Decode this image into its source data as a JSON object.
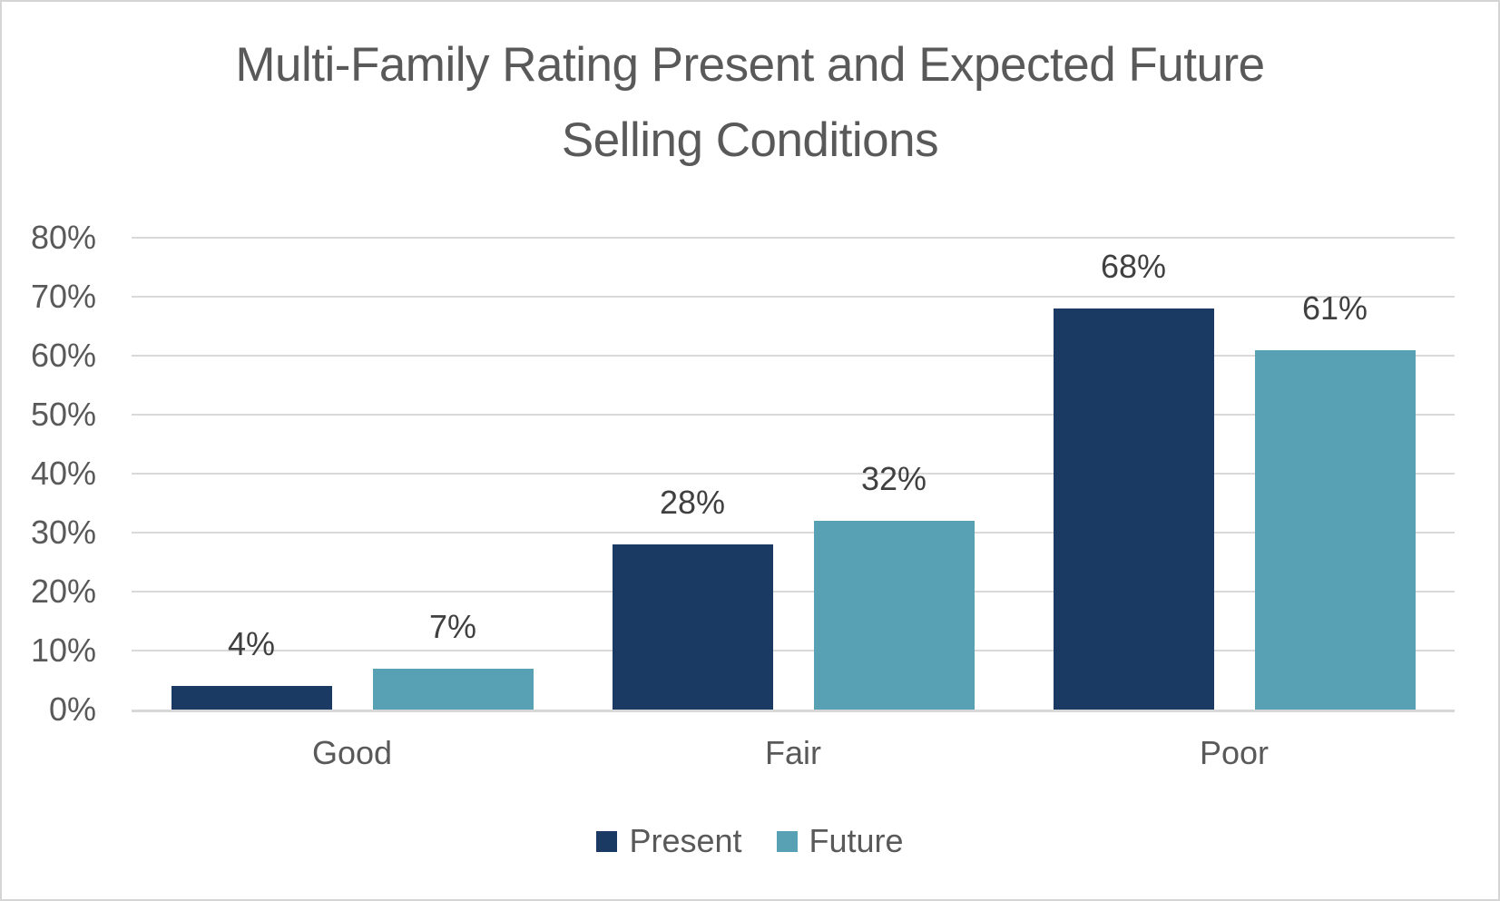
{
  "title": {
    "line1": "Multi-Family Rating Present and Expected Future",
    "line2": "Selling Conditions"
  },
  "chart_data": {
    "type": "bar",
    "title": "Multi-Family Rating Present and Expected Future Selling Conditions",
    "categories": [
      "Good",
      "Fair",
      "Poor"
    ],
    "series": [
      {
        "name": "Present",
        "color": "#1b3a63",
        "values": [
          4,
          28,
          68
        ]
      },
      {
        "name": "Future",
        "color": "#58a1b5",
        "values": [
          7,
          32,
          61
        ]
      }
    ],
    "data_label_suffix": "%",
    "data_labels": {
      "Present": [
        "4%",
        "28%",
        "68%"
      ],
      "Future": [
        "7%",
        "32%",
        "61%"
      ]
    },
    "y_axis": {
      "min": 0,
      "max": 80,
      "tick_step": 10,
      "tick_labels": [
        "0%",
        "10%",
        "20%",
        "30%",
        "40%",
        "50%",
        "60%",
        "70%",
        "80%"
      ]
    },
    "grid": true,
    "legend_position": "bottom",
    "colors": {
      "title_text": "#595959",
      "axis_text": "#595959",
      "data_label_text": "#404040",
      "gridline": "#d9d9d9",
      "frame_border": "#d5d5d5",
      "background": "#ffffff"
    }
  }
}
